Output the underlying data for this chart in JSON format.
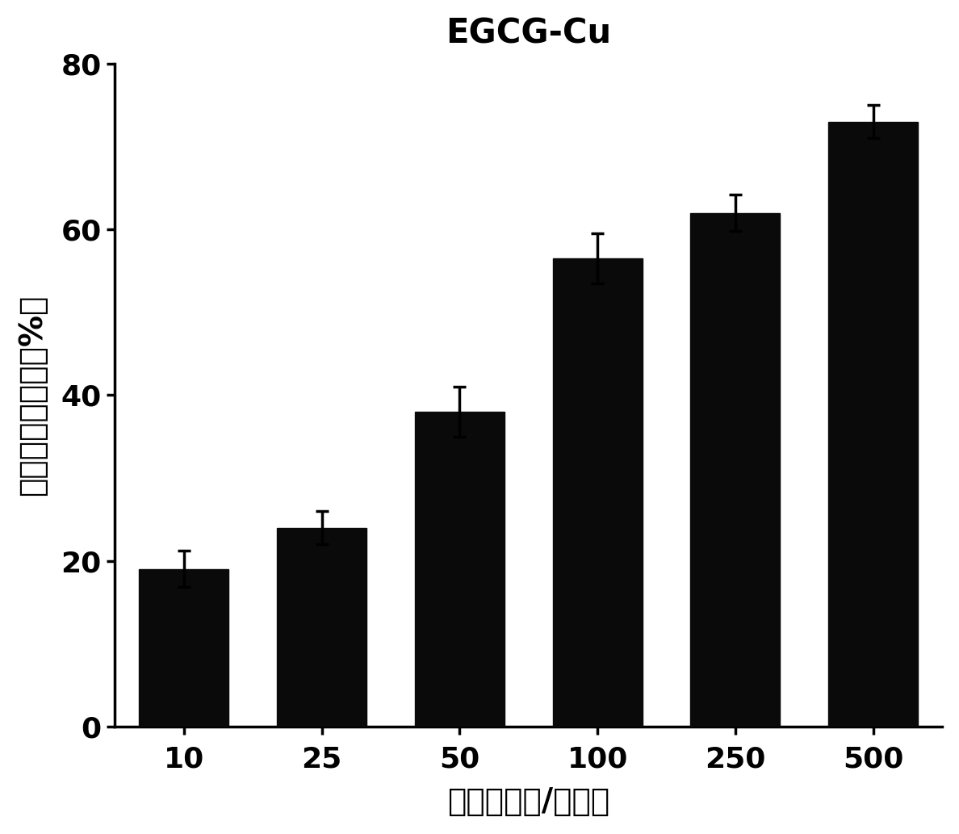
{
  "categories": [
    "10",
    "25",
    "50",
    "100",
    "250",
    "500"
  ],
  "values": [
    19.0,
    24.0,
    38.0,
    56.5,
    62.0,
    73.0
  ],
  "errors": [
    2.2,
    2.0,
    3.0,
    3.0,
    2.2,
    2.0
  ],
  "bar_color": "#0a0a0a",
  "title": "EGCG-Cu",
  "xlabel": "浓度（微克/毫升）",
  "ylabel": "过氧化氢清除率（%）",
  "ylim": [
    0,
    80
  ],
  "yticks": [
    0,
    20,
    40,
    60,
    80
  ],
  "background_color": "#ffffff",
  "title_fontsize": 30,
  "axis_label_fontsize": 28,
  "tick_fontsize": 26,
  "bar_width": 0.65
}
